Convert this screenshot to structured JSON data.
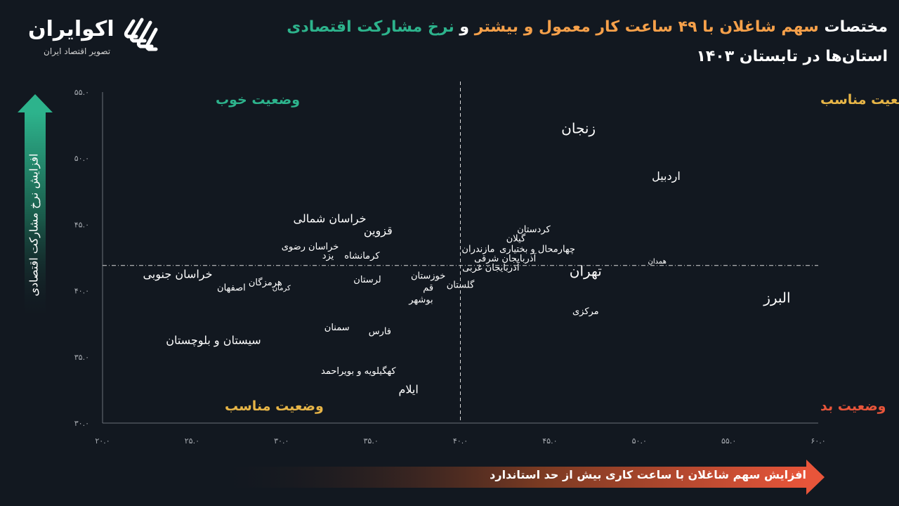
{
  "title": {
    "line1_parts": [
      {
        "text": "مختصات ",
        "color": "white"
      },
      {
        "text": "سهم شاغلان با ۴۹ ساعت کار معمول و بیشتر",
        "color": "orange"
      },
      {
        "text": " و ",
        "color": "white"
      },
      {
        "text": "نرخ مشارکت اقتصادی",
        "color": "green"
      }
    ],
    "line2": "استان‌ها در تابستان ۱۴۰۳"
  },
  "logo": {
    "name": "اکوایران",
    "subtitle": "تصویر اقتصاد ایران"
  },
  "colors": {
    "background": "#121820",
    "orange": "#f5a04a",
    "green": "#2db38c",
    "red": "#e8553a",
    "gold": "#e7b547",
    "axis": "#6b7079"
  },
  "axes": {
    "xlabel": "افزایش سهم شاغلان با ساعت کاری بیش از حد استاندارد",
    "ylabel": "افزایش نرخ مشارکت اقتصادی"
  },
  "quadrants": {
    "top_left": {
      "text": "وضعیت خوب",
      "color": "#2db38c"
    },
    "top_right": {
      "text": "وضعیت مناسب",
      "color": "#e7b547"
    },
    "bottom_left": {
      "text": "وضعیت مناسب",
      "color": "#e7b547"
    },
    "bottom_right": {
      "text": "وضعیت بد",
      "color": "#e8553a"
    }
  },
  "chart_data": {
    "type": "scatter",
    "xlim": [
      20,
      60
    ],
    "ylim": [
      30,
      55
    ],
    "x_ticks": [
      "۲۰.۰",
      "۲۵.۰",
      "۳۰.۰",
      "۳۵.۰",
      "۴۰.۰",
      "۴۵.۰",
      "۵۰.۰",
      "۵۵.۰",
      "۶۰.۰"
    ],
    "x_tick_values": [
      20,
      25,
      30,
      35,
      40,
      45,
      50,
      55,
      60
    ],
    "y_ticks": [
      "۳۰.۰",
      "۳۵.۰",
      "۴۰.۰",
      "۴۵.۰",
      "۵۰.۰",
      "۵۵.۰"
    ],
    "y_tick_values": [
      30,
      35,
      40,
      45,
      50,
      55
    ],
    "reference_lines": {
      "x": 40,
      "y": 41.9
    },
    "points": [
      {
        "label": "زنجان",
        "x": 46.6,
        "y": 52.2,
        "size": "l"
      },
      {
        "label": "اردبیل",
        "x": 51.5,
        "y": 48.6,
        "size": "m"
      },
      {
        "label": "خراسان شمالی",
        "x": 32.7,
        "y": 45.4,
        "size": "m"
      },
      {
        "label": "قزوین",
        "x": 35.4,
        "y": 44.5,
        "size": "m"
      },
      {
        "label": "کردستان",
        "x": 44.1,
        "y": 44.6,
        "size": "s"
      },
      {
        "label": "گیلان",
        "x": 43.1,
        "y": 43.9,
        "size": "s"
      },
      {
        "label": "خراسان رضوی",
        "x": 31.6,
        "y": 43.3,
        "size": "s"
      },
      {
        "label": "یزد",
        "x": 32.6,
        "y": 42.6,
        "size": "s"
      },
      {
        "label": "کرمانشاه",
        "x": 34.5,
        "y": 42.6,
        "size": "s"
      },
      {
        "label": "مازندران",
        "x": 41.0,
        "y": 43.1,
        "size": "s"
      },
      {
        "label": "چهارمحال و بختیاری",
        "x": 44.3,
        "y": 43.1,
        "size": "s"
      },
      {
        "label": "آذربایجان شرقی",
        "x": 42.5,
        "y": 42.4,
        "size": "s"
      },
      {
        "label": "همدان",
        "x": 51.0,
        "y": 42.2,
        "size": "xs"
      },
      {
        "label": "آذربایجان غربی",
        "x": 41.7,
        "y": 41.7,
        "size": "s"
      },
      {
        "label": "تهران",
        "x": 47.0,
        "y": 41.4,
        "size": "l"
      },
      {
        "label": "خراسان جنوبی",
        "x": 24.2,
        "y": 41.2,
        "size": "m"
      },
      {
        "label": "خوزستان",
        "x": 38.2,
        "y": 41.1,
        "size": "s"
      },
      {
        "label": "لرستان",
        "x": 34.8,
        "y": 40.8,
        "size": "s"
      },
      {
        "label": "گلستان",
        "x": 40.0,
        "y": 40.4,
        "size": "s"
      },
      {
        "label": "قم",
        "x": 38.2,
        "y": 40.2,
        "size": "s"
      },
      {
        "label": "هرمزگان",
        "x": 29.1,
        "y": 40.6,
        "size": "s"
      },
      {
        "label": "کرمان",
        "x": 30.0,
        "y": 40.2,
        "size": "xs"
      },
      {
        "label": "اصفهان",
        "x": 27.2,
        "y": 40.2,
        "size": "s"
      },
      {
        "label": "البرز",
        "x": 57.7,
        "y": 39.4,
        "size": "l"
      },
      {
        "label": "بوشهر",
        "x": 37.8,
        "y": 39.3,
        "size": "s"
      },
      {
        "label": "مرکزی",
        "x": 47.0,
        "y": 38.4,
        "size": "s"
      },
      {
        "label": "سمنان",
        "x": 33.1,
        "y": 37.2,
        "size": "s"
      },
      {
        "label": "فارس",
        "x": 35.5,
        "y": 36.9,
        "size": "s"
      },
      {
        "label": "سیستان و بلوچستان",
        "x": 26.2,
        "y": 36.2,
        "size": "m"
      },
      {
        "label": "کهگیلویه و بویراحمد",
        "x": 34.3,
        "y": 33.9,
        "size": "s"
      },
      {
        "label": "ایلام",
        "x": 37.1,
        "y": 32.5,
        "size": "m"
      }
    ]
  }
}
